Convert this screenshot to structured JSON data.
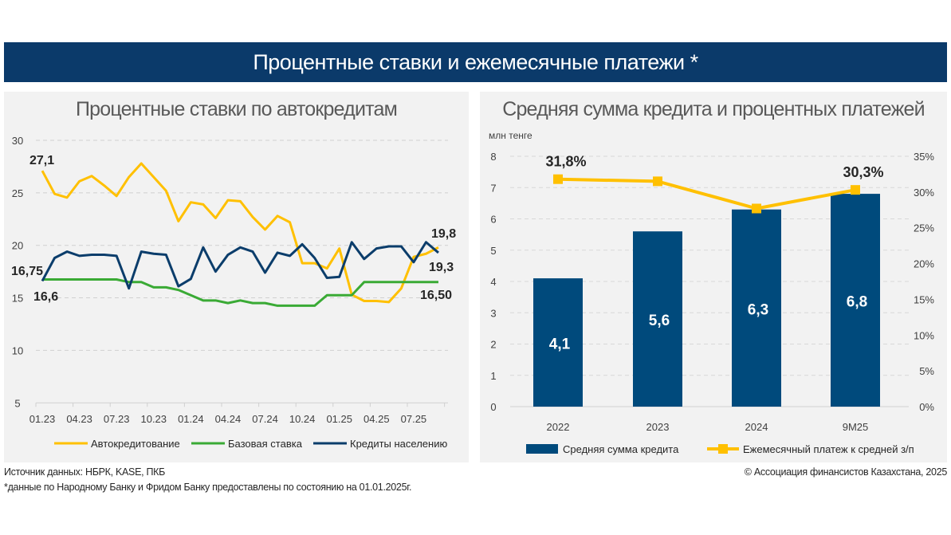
{
  "header": {
    "title": "Процентные ставки и ежемесячные платежи *"
  },
  "colors": {
    "banner": "#0b3a6a",
    "panel": "#f2f2f2",
    "yellow": "#ffc000",
    "green": "#3aaa35",
    "navy": "#0b3d6b",
    "bar": "#004a7c"
  },
  "footer": {
    "source": "Источник данных: НБРК, KASE, ПКБ",
    "note": "*данные по Народному Банку и Фридом Банку предоставлены по состоянию на 01.01.2025г.",
    "copyright": "© Ассоциация финансистов Казахстана, 2025"
  },
  "chart_data": [
    {
      "type": "line",
      "title": "Процентные ставки по автокредитам",
      "ylim": [
        5,
        30
      ],
      "yticks": [
        "5",
        "10",
        "15",
        "20",
        "25",
        "30"
      ],
      "xtick_labels": [
        "01.23",
        "04.23",
        "07.23",
        "10.23",
        "01.24",
        "04.24",
        "07.24",
        "10.24",
        "01.25",
        "04.25",
        "07.25"
      ],
      "grid": true,
      "legend": "bottom",
      "series": [
        {
          "name": "Автокредитование",
          "color": "#ffc000",
          "values": [
            27.1,
            24.9,
            24.55,
            26.1,
            26.6,
            25.7,
            24.7,
            26.5,
            27.8,
            26.5,
            25.2,
            22.3,
            24.1,
            23.9,
            22.6,
            24.3,
            24.2,
            22.7,
            21.5,
            22.8,
            22.2,
            18.3,
            18.3,
            17.8,
            19.7,
            15.3,
            14.7,
            14.7,
            14.6,
            15.9,
            18.9,
            19.2,
            19.8
          ]
        },
        {
          "name": "Базовая ставка",
          "color": "#3aaa35",
          "values": [
            16.75,
            16.75,
            16.75,
            16.75,
            16.75,
            16.75,
            16.75,
            16.5,
            16.5,
            16.0,
            16.0,
            15.75,
            15.25,
            14.75,
            14.75,
            14.5,
            14.75,
            14.5,
            14.5,
            14.25,
            14.25,
            14.25,
            14.25,
            15.25,
            15.25,
            15.25,
            16.5,
            16.5,
            16.5,
            16.5,
            16.5,
            16.5,
            16.5
          ]
        },
        {
          "name": "Кредиты населению",
          "color": "#0b3d6b",
          "values": [
            16.6,
            18.8,
            19.4,
            19.0,
            19.1,
            19.1,
            19.0,
            15.9,
            19.4,
            19.2,
            19.1,
            16.1,
            16.8,
            19.8,
            17.5,
            19.1,
            19.8,
            19.4,
            17.4,
            19.3,
            19.0,
            20.1,
            18.8,
            16.9,
            17.0,
            20.3,
            18.7,
            19.7,
            19.9,
            19.9,
            18.4,
            20.3,
            19.3
          ]
        }
      ],
      "annotations": {
        "auto_start": "27,1",
        "base_start": "16,75",
        "loans_start": "16,6",
        "auto_end": "19,8",
        "loans_end": "19,3",
        "base_end": "16,50"
      }
    },
    {
      "type": "bar",
      "title": "Средняя сумма кредита и процентных платежей",
      "ylabel": "млн тенге",
      "categories": [
        "2022",
        "2023",
        "2024",
        "9M25"
      ],
      "ylim": [
        0,
        8
      ],
      "yticks": [
        "0",
        "1",
        "2",
        "3",
        "4",
        "5",
        "6",
        "7",
        "8"
      ],
      "y2lim": [
        0,
        35
      ],
      "y2ticks": [
        "0%",
        "5%",
        "10%",
        "15%",
        "20%",
        "25%",
        "30%",
        "35%"
      ],
      "grid": true,
      "legend": "bottom",
      "series": [
        {
          "name": "Средняя сумма кредита",
          "type": "bar",
          "color": "#004a7c",
          "values": [
            4.1,
            5.6,
            6.3,
            6.8
          ],
          "labels": [
            "4,1",
            "5,6",
            "6,3",
            "6,8"
          ]
        },
        {
          "name": "Ежемесячный платеж к средней з/п",
          "type": "line",
          "axis": "right",
          "color": "#ffc000",
          "values": [
            31.8,
            31.5,
            27.7,
            30.3
          ],
          "labels": [
            "31,8%",
            "",
            "",
            "30,3%"
          ]
        }
      ]
    }
  ]
}
